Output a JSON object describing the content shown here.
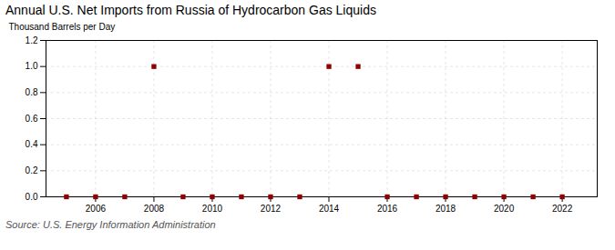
{
  "chart_data": {
    "type": "scatter",
    "title": "Annual U.S. Net Imports from Russia of Hydrocarbon Gas Liquids",
    "ylabel": "Thousand Barrels per Day",
    "annotations": [
      "Source: U.S. Energy Information Administration"
    ],
    "x": [
      2005,
      2006,
      2007,
      2008,
      2009,
      2010,
      2011,
      2012,
      2013,
      2014,
      2015,
      2016,
      2017,
      2018,
      2019,
      2020,
      2021,
      2022
    ],
    "values": [
      0.0,
      0.0,
      0.0,
      1.0,
      0.0,
      0.0,
      0.0,
      0.0,
      0.0,
      1.0,
      1.0,
      0.0,
      0.0,
      0.0,
      0.0,
      0.0,
      0.0,
      0.0
    ],
    "color": "#8B0000",
    "marker": "square",
    "xlim": [
      2004.3,
      2023.2
    ],
    "ylim": [
      0.0,
      1.2
    ],
    "xticks": [
      2006,
      2008,
      2010,
      2012,
      2014,
      2016,
      2018,
      2020,
      2022
    ],
    "yticks": [
      {
        "value": 0.0,
        "label": "0.0"
      },
      {
        "value": 0.2,
        "label": "0.2"
      },
      {
        "value": 0.4,
        "label": "0.4"
      },
      {
        "value": 0.6,
        "label": "0.6"
      },
      {
        "value": 0.8,
        "label": "0.8"
      },
      {
        "value": 1.0,
        "label": "1.0"
      },
      {
        "value": 1.2,
        "label": "1.2"
      }
    ],
    "grid": true
  }
}
